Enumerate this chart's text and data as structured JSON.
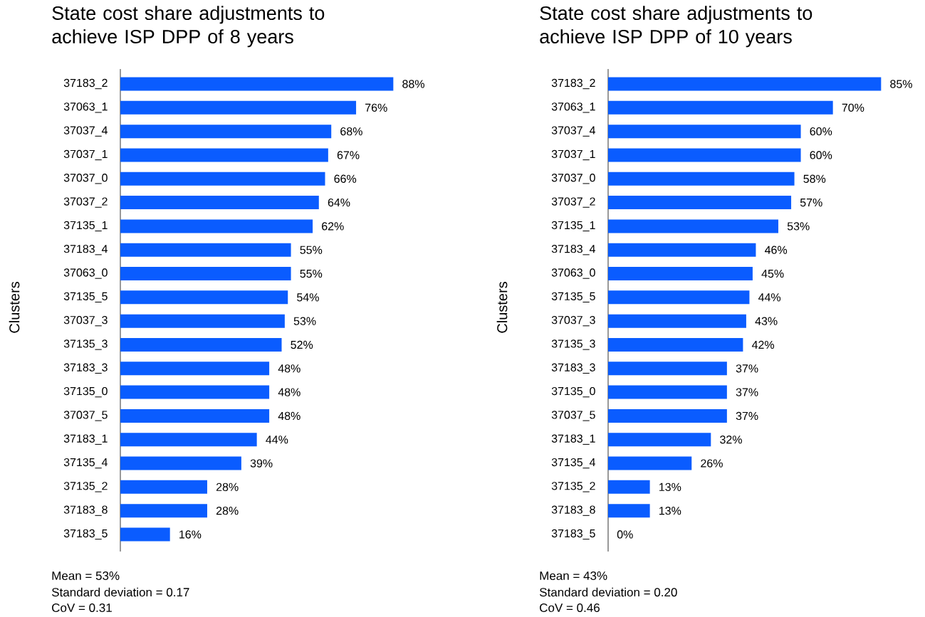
{
  "chart_data": [
    {
      "type": "bar",
      "orientation": "horizontal",
      "title": "State cost share adjustments to achieve ISP DPP of 8 years",
      "ylabel": "Clusters",
      "color": "#0a5cff",
      "categories": [
        "37183_2",
        "37063_1",
        "37037_4",
        "37037_1",
        "37037_0",
        "37037_2",
        "37135_1",
        "37183_4",
        "37063_0",
        "37135_5",
        "37037_3",
        "37135_3",
        "37183_3",
        "37135_0",
        "37037_5",
        "37183_1",
        "37135_4",
        "37135_2",
        "37183_8",
        "37183_5"
      ],
      "values": [
        88,
        76,
        68,
        67,
        66,
        64,
        62,
        55,
        55,
        54,
        53,
        52,
        48,
        48,
        48,
        44,
        39,
        28,
        28,
        16
      ],
      "value_labels": [
        "88%",
        "76%",
        "68%",
        "67%",
        "66%",
        "64%",
        "62%",
        "55%",
        "55%",
        "54%",
        "53%",
        "52%",
        "48%",
        "48%",
        "48%",
        "44%",
        "39%",
        "28%",
        "28%",
        "16%"
      ],
      "annotations": [
        "Mean = 53%",
        "Standard deviation = 0.17",
        "CoV = 0.31"
      ]
    },
    {
      "type": "bar",
      "orientation": "horizontal",
      "title": "State cost share adjustments to achieve ISP DPP of 10 years",
      "ylabel": "Clusters",
      "color": "#0a5cff",
      "categories": [
        "37183_2",
        "37063_1",
        "37037_4",
        "37037_1",
        "37037_0",
        "37037_2",
        "37135_1",
        "37183_4",
        "37063_0",
        "37135_5",
        "37037_3",
        "37135_3",
        "37183_3",
        "37135_0",
        "37037_5",
        "37183_1",
        "37135_4",
        "37135_2",
        "37183_8",
        "37183_5"
      ],
      "values": [
        85,
        70,
        60,
        60,
        58,
        57,
        53,
        46,
        45,
        44,
        43,
        42,
        37,
        37,
        37,
        32,
        26,
        13,
        13,
        0
      ],
      "value_labels": [
        "85%",
        "70%",
        "60%",
        "60%",
        "58%",
        "57%",
        "53%",
        "46%",
        "45%",
        "44%",
        "43%",
        "42%",
        "37%",
        "37%",
        "37%",
        "32%",
        "26%",
        "13%",
        "13%",
        "0%"
      ],
      "annotations": [
        "Mean = 43%",
        "Standard deviation = 0.20",
        "CoV = 0.46"
      ]
    }
  ]
}
